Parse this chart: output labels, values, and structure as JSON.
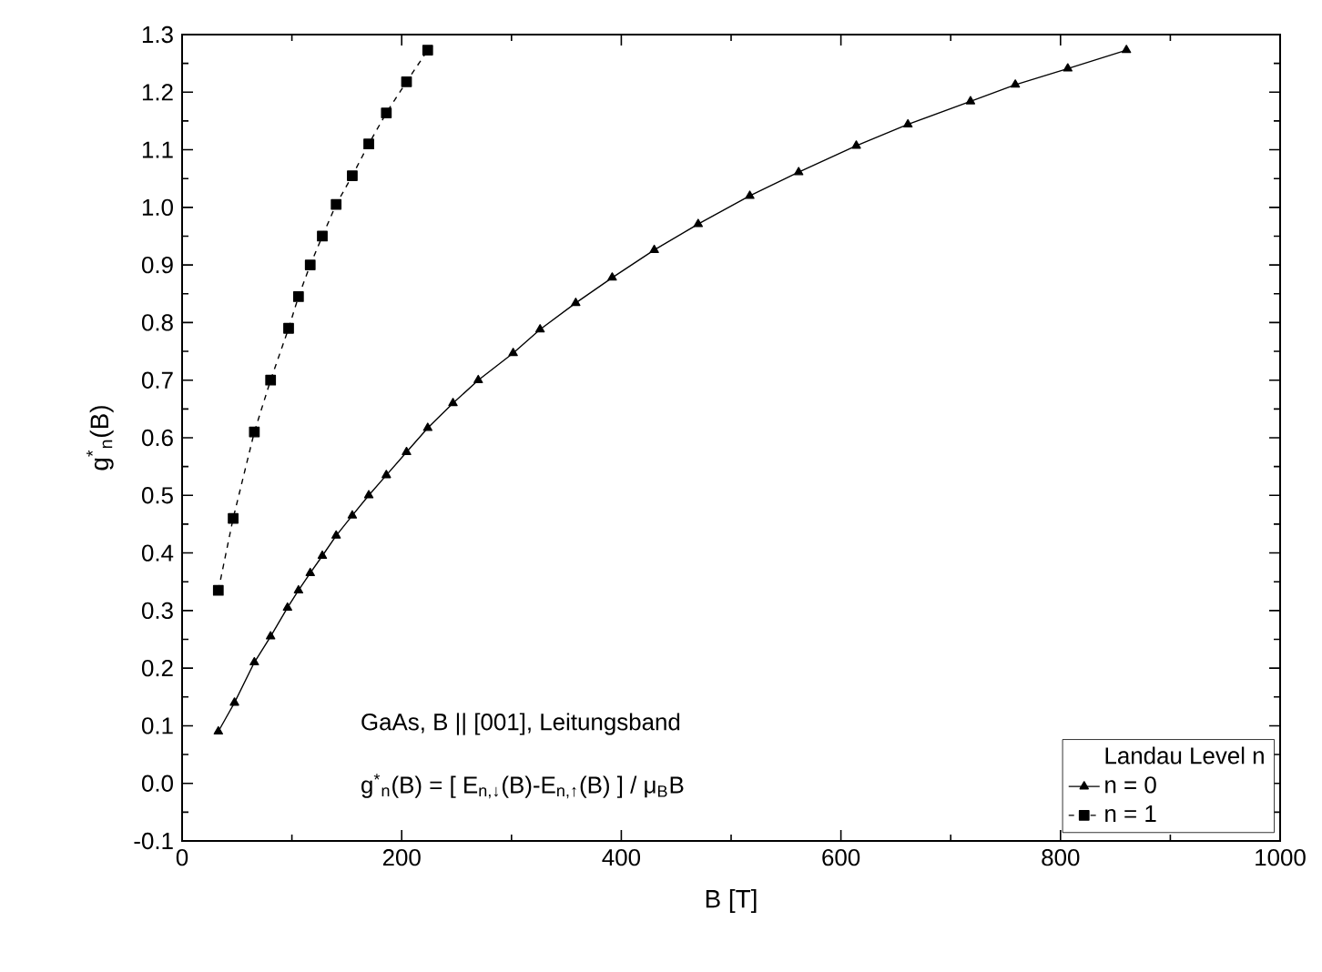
{
  "chart_data": {
    "type": "line",
    "xlabel": "B [T]",
    "ylabel": "g$^{*}$$_{n}$(B)",
    "legend_title": "Landau Level n",
    "legend": "bottom right",
    "xlim": [
      0,
      1000
    ],
    "xticks": [
      0,
      200,
      400,
      600,
      800,
      1000
    ],
    "ylim": [
      -0.1,
      1.3
    ],
    "yticks": [
      -0.1,
      {
        "value": 0,
        "label": "0.0"
      },
      0.1,
      0.2,
      0.3,
      0.4,
      0.5,
      0.6,
      0.7,
      0.8,
      0.9,
      {
        "value": 1,
        "label": "1.0"
      },
      1.1,
      1.2,
      1.3
    ],
    "annotations": [
      "GaAs, B || [001], Leitungsband",
      "g$^{*}$$_{n}$(B) = [ E$_{n,↓}$(B)-E$_{n,↑}$(B) ] / μ$_{B}$B"
    ],
    "series": [
      {
        "name": "n = 0",
        "color": "#000000",
        "marker": "triangle",
        "line_style": "solid",
        "x": [
          33,
          47.7,
          65.8,
          80.6,
          96,
          106,
          116.7,
          127.7,
          140.3,
          155,
          170,
          186,
          204.4,
          223.7,
          246.7,
          269.7,
          301.5,
          326,
          358.5,
          391.7,
          430,
          470,
          517,
          561.5,
          614,
          661,
          718,
          758.8,
          806.6,
          860
        ],
        "values": [
          0.09,
          0.14,
          0.21,
          0.255,
          0.305,
          0.335,
          0.365,
          0.395,
          0.43,
          0.465,
          0.5,
          0.535,
          0.575,
          0.617,
          0.66,
          0.7,
          0.747,
          0.788,
          0.834,
          0.878,
          0.926,
          0.971,
          1.02,
          1.061,
          1.107,
          1.144,
          1.184,
          1.213,
          1.241,
          1.273
        ]
      },
      {
        "name": "n = 1",
        "color": "#000000",
        "marker": "square",
        "line_style": "dashed",
        "x": [
          33,
          46.5,
          65.8,
          80.6,
          97,
          106,
          116.7,
          127.7,
          140.3,
          155,
          170,
          186,
          204.4,
          223.7
        ],
        "values": [
          0.335,
          0.46,
          0.61,
          0.7,
          0.79,
          0.845,
          0.9,
          0.95,
          1.005,
          1.055,
          1.11,
          1.164,
          1.218,
          1.273
        ]
      }
    ]
  }
}
